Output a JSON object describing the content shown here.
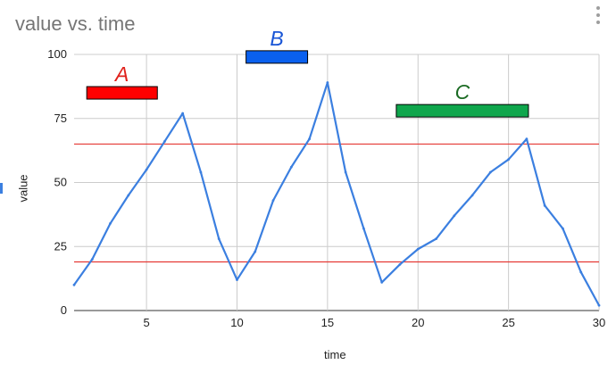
{
  "title": "value vs. time",
  "chart_data": {
    "type": "line",
    "title": "value vs. time",
    "xlabel": "time",
    "ylabel": "value",
    "xlim": [
      1,
      30
    ],
    "ylim": [
      0,
      100
    ],
    "x_ticks": [
      5,
      10,
      15,
      20,
      25,
      30
    ],
    "y_ticks": [
      0,
      25,
      50,
      75,
      100
    ],
    "grid": true,
    "legend": "left",
    "series": [
      {
        "name": "value",
        "color": "#3b7fe0",
        "x": [
          1,
          2,
          3,
          4,
          5,
          6,
          7,
          8,
          9,
          10,
          11,
          12,
          13,
          14,
          15,
          16,
          17,
          18,
          19,
          20,
          21,
          22,
          23,
          24,
          25,
          26,
          27,
          28,
          29,
          30
        ],
        "y": [
          10,
          20,
          34,
          45,
          55,
          66,
          77,
          54,
          28,
          12,
          23,
          43,
          56,
          67,
          89,
          54,
          32,
          11,
          18,
          24,
          28,
          37,
          45,
          54,
          59,
          67,
          41,
          32,
          15,
          2
        ]
      }
    ],
    "reference_lines": [
      {
        "y": 65,
        "color": "#e53935"
      },
      {
        "y": 19,
        "color": "#e53935"
      }
    ],
    "annotations": [
      {
        "label": "A",
        "text_color": "#e0211b",
        "fill": "#ff0000",
        "x_start": 1.7,
        "x_end": 5.6,
        "y": 85
      },
      {
        "label": "B",
        "text_color": "#1a56d6",
        "fill": "#0a60ee",
        "x_start": 10.5,
        "x_end": 13.9,
        "y": 99
      },
      {
        "label": "C",
        "text_color": "#1b6b23",
        "fill": "#0fa64c",
        "x_start": 18.8,
        "x_end": 26.1,
        "y": 78
      }
    ]
  }
}
